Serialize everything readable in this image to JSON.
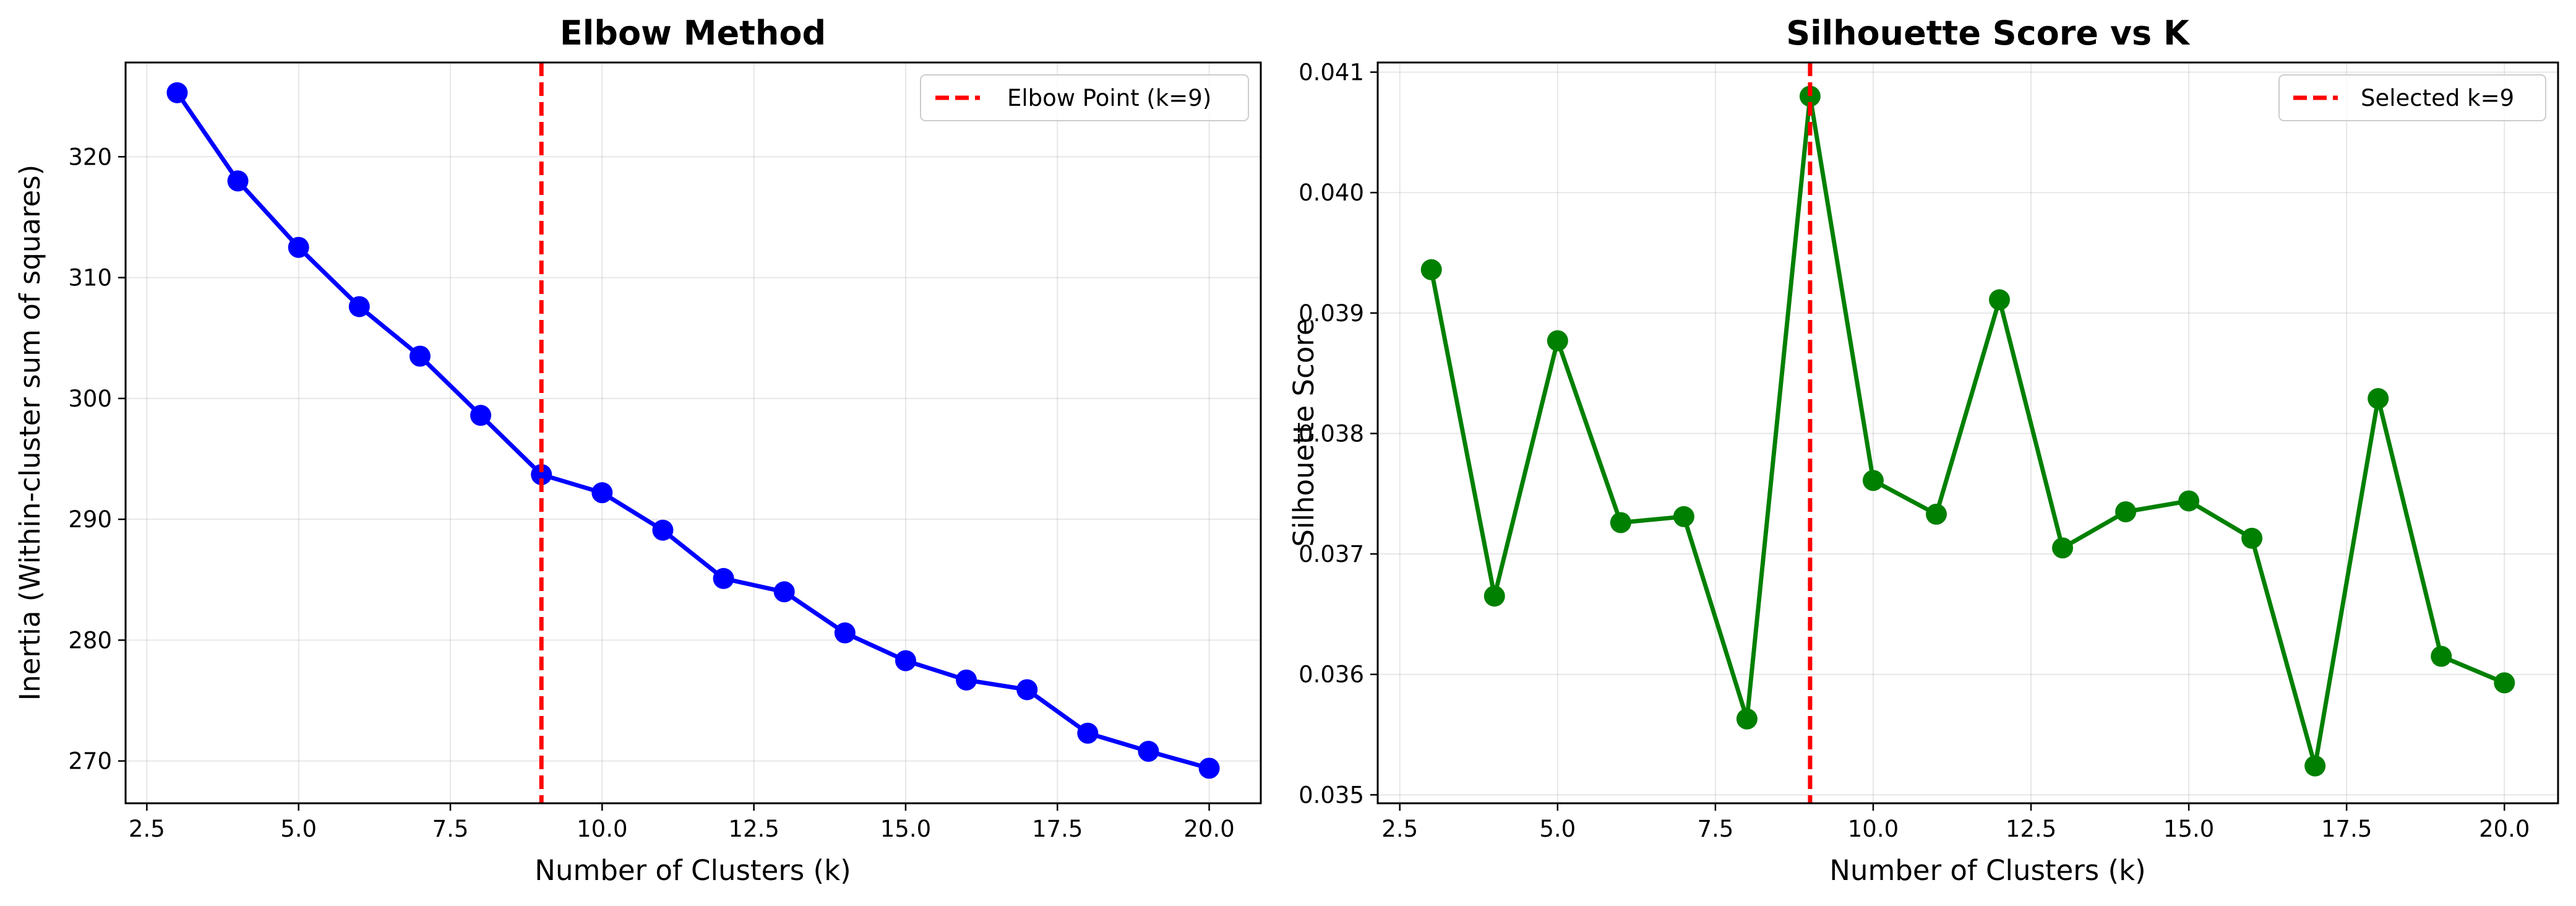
{
  "figure": {
    "background": "#ffffff"
  },
  "chart_data": [
    {
      "type": "line",
      "title": "Elbow Method",
      "xlabel": "Number of Clusters (k)",
      "ylabel": "Inertia (Within-cluster sum of squares)",
      "xlim": [
        2.15,
        20.85
      ],
      "ylim": [
        266.5,
        327.8
      ],
      "x_ticks": [
        2.5,
        5.0,
        7.5,
        10.0,
        12.5,
        15.0,
        17.5,
        20.0
      ],
      "x_tick_labels": [
        "2.5",
        "5.0",
        "7.5",
        "10.0",
        "12.5",
        "15.0",
        "17.5",
        "20.0"
      ],
      "y_ticks": [
        270,
        280,
        290,
        300,
        310,
        320
      ],
      "y_tick_labels": [
        "270",
        "280",
        "290",
        "300",
        "310",
        "320"
      ],
      "grid": true,
      "legend": {
        "placement": "top-right",
        "entries": [
          "Elbow Point (k=9)"
        ]
      },
      "vline": {
        "x": 9,
        "label": "Elbow Point (k=9)",
        "color": "#ff0000",
        "style": "dashed"
      },
      "series": [
        {
          "color": "#0000ff",
          "marker": "circle",
          "x": [
            3,
            4,
            5,
            6,
            7,
            8,
            9,
            10,
            11,
            12,
            13,
            14,
            15,
            16,
            17,
            18,
            19,
            20
          ],
          "values": [
            325.3,
            318.0,
            312.5,
            307.6,
            303.5,
            298.6,
            293.7,
            292.2,
            289.1,
            285.1,
            284.0,
            280.6,
            278.3,
            276.7,
            275.9,
            272.3,
            270.8,
            269.4
          ]
        }
      ]
    },
    {
      "type": "line",
      "title": "Silhouette Score vs K",
      "xlabel": "Number of Clusters (k)",
      "ylabel": "Silhouette Score",
      "xlim": [
        2.15,
        20.85
      ],
      "ylim": [
        0.03493,
        0.04108
      ],
      "x_ticks": [
        2.5,
        5.0,
        7.5,
        10.0,
        12.5,
        15.0,
        17.5,
        20.0
      ],
      "x_tick_labels": [
        "2.5",
        "5.0",
        "7.5",
        "10.0",
        "12.5",
        "15.0",
        "17.5",
        "20.0"
      ],
      "y_ticks": [
        0.035,
        0.036,
        0.037,
        0.038,
        0.039,
        0.04,
        0.041
      ],
      "y_tick_labels": [
        "0.035",
        "0.036",
        "0.037",
        "0.038",
        "0.039",
        "0.040",
        "0.041"
      ],
      "grid": true,
      "legend": {
        "placement": "top-right",
        "entries": [
          "Selected k=9"
        ]
      },
      "vline": {
        "x": 9,
        "label": "Selected k=9",
        "color": "#ff0000",
        "style": "dashed"
      },
      "series": [
        {
          "color": "#008000",
          "marker": "circle",
          "x": [
            3,
            4,
            5,
            6,
            7,
            8,
            9,
            10,
            11,
            12,
            13,
            14,
            15,
            16,
            17,
            18,
            19,
            20
          ],
          "values": [
            0.03936,
            0.03665,
            0.03877,
            0.03726,
            0.03731,
            0.03563,
            0.0408,
            0.03761,
            0.03733,
            0.03911,
            0.03705,
            0.03735,
            0.03744,
            0.03713,
            0.03524,
            0.03829,
            0.03615,
            0.03593
          ]
        }
      ]
    }
  ]
}
